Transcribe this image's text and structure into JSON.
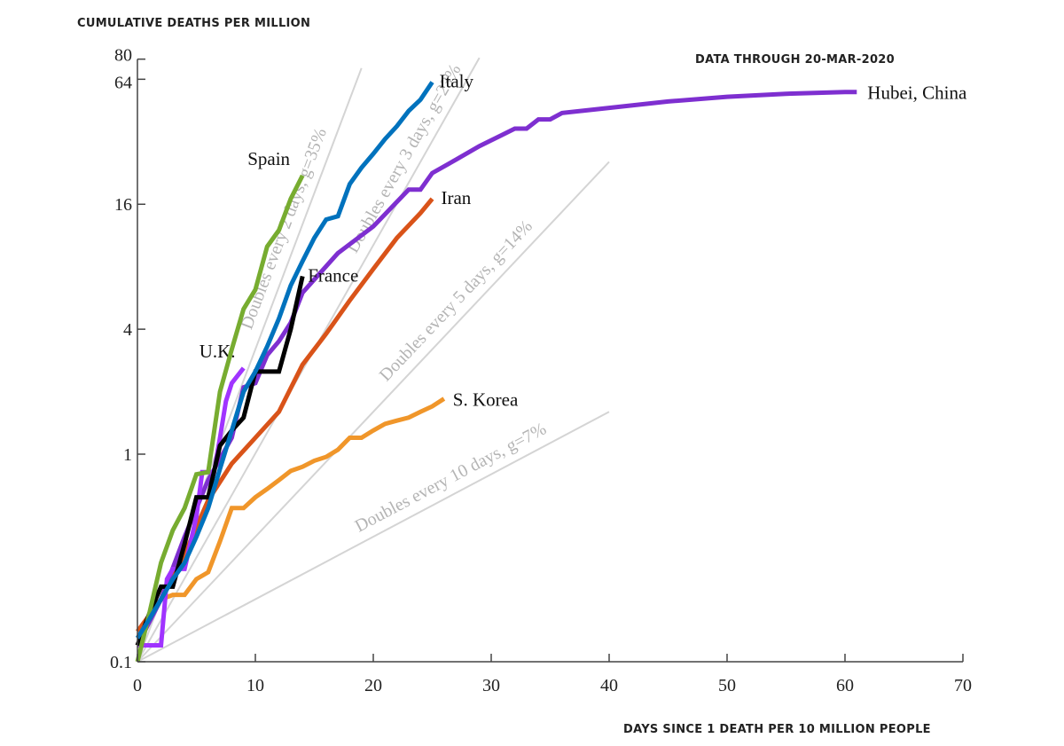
{
  "chart_data": {
    "type": "line",
    "title": "DATA THROUGH 20-MAR-2020",
    "ylabel": "CUMULATIVE DEATHS PER MILLION",
    "xlabel": "DAYS SINCE 1 DEATH PER 10 MILLION PEOPLE",
    "yscale": "log",
    "xlim": [
      0,
      70
    ],
    "ylim": [
      0.1,
      80
    ],
    "xticks": [
      0,
      10,
      20,
      30,
      40,
      50,
      60,
      70
    ],
    "yticks": [
      0.1,
      1,
      4,
      16,
      64,
      80
    ],
    "ytick_labels": [
      "0.1",
      "1",
      "4",
      "16",
      "64",
      "80"
    ],
    "grid": false,
    "reference_lines": [
      {
        "label": "Doubles every 2 days, g=35%",
        "doubling_days": 2,
        "x_end": 19,
        "color": "#d4d4d4"
      },
      {
        "label": "Doubles every 3 days, g=23%",
        "doubling_days": 3,
        "x_end": 29,
        "color": "#d4d4d4"
      },
      {
        "label": "Doubles every 5 days, g=14%",
        "doubling_days": 5,
        "x_end": 40,
        "color": "#d4d4d4"
      },
      {
        "label": "Doubles every 10 days, g=7%",
        "doubling_days": 10,
        "x_end": 40,
        "color": "#d4d4d4"
      }
    ],
    "series": [
      {
        "name": "S. Korea",
        "color": "#f0962a",
        "x": [
          0,
          1,
          2,
          3,
          4,
          5,
          6,
          7,
          8,
          9,
          10,
          11,
          12,
          13,
          14,
          15,
          16,
          17,
          18,
          19,
          20,
          21,
          22,
          23,
          24,
          25,
          26
        ],
        "y": [
          0.12,
          0.16,
          0.2,
          0.21,
          0.21,
          0.25,
          0.27,
          0.38,
          0.55,
          0.55,
          0.62,
          0.68,
          0.75,
          0.83,
          0.87,
          0.93,
          0.97,
          1.05,
          1.2,
          1.2,
          1.3,
          1.4,
          1.45,
          1.5,
          1.6,
          1.7,
          1.85
        ]
      },
      {
        "name": "Iran",
        "color": "#d95319",
        "x": [
          0,
          2,
          4,
          6,
          8,
          10,
          12,
          14,
          16,
          18,
          20,
          22,
          24,
          25
        ],
        "y": [
          0.14,
          0.2,
          0.33,
          0.6,
          0.9,
          1.2,
          1.6,
          2.7,
          3.8,
          5.5,
          7.8,
          11,
          14.5,
          17
        ]
      },
      {
        "name": "Hubei, China",
        "color": "#7e2fd0",
        "x": [
          0,
          2,
          4,
          6,
          8,
          9,
          10,
          11,
          12,
          13,
          14,
          17,
          20,
          23,
          24,
          25,
          27,
          29,
          31,
          32,
          33,
          34,
          35,
          36,
          40,
          45,
          50,
          55,
          60,
          61
        ],
        "y": [
          0.12,
          0.2,
          0.4,
          0.75,
          1.2,
          2.1,
          2.2,
          3.0,
          3.5,
          4.3,
          6.0,
          9.3,
          12.5,
          18.8,
          18.8,
          22.6,
          26.2,
          30.5,
          34.7,
          37,
          37,
          41,
          41,
          44,
          46.6,
          50,
          52.7,
          54.5,
          55.6,
          55.6
        ]
      },
      {
        "name": "U.K.",
        "color": "#a034ff",
        "x": [
          0,
          1,
          2,
          2.5,
          3,
          4,
          5,
          5.5,
          6.5,
          7,
          7.5,
          8,
          9
        ],
        "y": [
          0.12,
          0.12,
          0.12,
          0.25,
          0.28,
          0.28,
          0.5,
          0.82,
          0.82,
          1.2,
          1.8,
          2.2,
          2.6
        ]
      },
      {
        "name": "France",
        "color": "#000000",
        "x": [
          0,
          1,
          2,
          3,
          4,
          5,
          6,
          7,
          8,
          9,
          10,
          11,
          12,
          13,
          14
        ],
        "y": [
          0.12,
          0.17,
          0.23,
          0.23,
          0.37,
          0.62,
          0.62,
          1.1,
          1.3,
          1.5,
          2.5,
          2.5,
          2.5,
          4.0,
          7.2
        ]
      },
      {
        "name": "Spain",
        "color": "#77ac30",
        "x": [
          0,
          1,
          2,
          3,
          4,
          5,
          6,
          7,
          8,
          9,
          10,
          11,
          12,
          13,
          14
        ],
        "y": [
          0.1,
          0.17,
          0.3,
          0.43,
          0.55,
          0.8,
          0.82,
          2.0,
          3.2,
          5.0,
          6.2,
          10,
          12,
          17,
          22
        ]
      },
      {
        "name": "Italy",
        "color": "#0072bd",
        "x": [
          0,
          1,
          2,
          3,
          4,
          5,
          6,
          7,
          8,
          9,
          10,
          11,
          12,
          13,
          14,
          15,
          16,
          17,
          18,
          19,
          20,
          21,
          22,
          23,
          24,
          25
        ],
        "y": [
          0.13,
          0.16,
          0.2,
          0.25,
          0.3,
          0.4,
          0.55,
          0.85,
          1.3,
          2.0,
          2.5,
          3.3,
          4.5,
          6.5,
          8.5,
          11,
          13.5,
          14,
          20,
          24,
          28,
          33,
          38,
          45,
          51,
          62
        ]
      }
    ]
  }
}
